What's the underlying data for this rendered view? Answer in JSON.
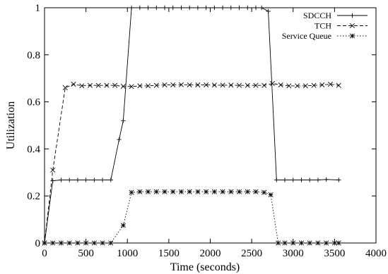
{
  "chart_data": {
    "type": "line",
    "title": "",
    "xlabel": "Time (seconds)",
    "ylabel": "Utilization",
    "xlim": [
      0,
      4000
    ],
    "ylim": [
      0,
      1
    ],
    "xticks": [
      0,
      500,
      1000,
      1500,
      2000,
      2500,
      3000,
      3500,
      4000
    ],
    "yticks": [
      0,
      0.2,
      0.4,
      0.6,
      0.8,
      1
    ],
    "grid": false,
    "legend_position": "top-right",
    "series": [
      {
        "name": "SDCCH",
        "line_style": "solid",
        "marker": "plus",
        "points": [
          [
            0,
            0
          ],
          [
            100,
            0.265
          ],
          [
            200,
            0.268
          ],
          [
            300,
            0.268
          ],
          [
            400,
            0.268
          ],
          [
            500,
            0.268
          ],
          [
            600,
            0.268
          ],
          [
            700,
            0.268
          ],
          [
            800,
            0.268
          ],
          [
            900,
            0.44
          ],
          [
            950,
            0.52
          ],
          [
            1050,
            1.0
          ],
          [
            1150,
            1.0
          ],
          [
            1250,
            1.0
          ],
          [
            1350,
            1.0
          ],
          [
            1450,
            1.0
          ],
          [
            1550,
            1.0
          ],
          [
            1650,
            1.0
          ],
          [
            1750,
            1.0
          ],
          [
            1850,
            1.0
          ],
          [
            1950,
            1.0
          ],
          [
            2050,
            1.0
          ],
          [
            2150,
            1.0
          ],
          [
            2250,
            1.0
          ],
          [
            2350,
            1.0
          ],
          [
            2450,
            1.0
          ],
          [
            2550,
            1.0
          ],
          [
            2620,
            1.0
          ],
          [
            2700,
            0.985
          ],
          [
            2800,
            0.268
          ],
          [
            2900,
            0.268
          ],
          [
            3000,
            0.268
          ],
          [
            3100,
            0.268
          ],
          [
            3200,
            0.268
          ],
          [
            3300,
            0.268
          ],
          [
            3400,
            0.27
          ],
          [
            3550,
            0.268
          ]
        ]
      },
      {
        "name": "TCH",
        "line_style": "dashed",
        "marker": "x",
        "points": [
          [
            0,
            0
          ],
          [
            100,
            0.31
          ],
          [
            250,
            0.66
          ],
          [
            350,
            0.675
          ],
          [
            450,
            0.668
          ],
          [
            550,
            0.67
          ],
          [
            650,
            0.67
          ],
          [
            750,
            0.67
          ],
          [
            850,
            0.67
          ],
          [
            950,
            0.666
          ],
          [
            1050,
            0.665
          ],
          [
            1150,
            0.668
          ],
          [
            1250,
            0.668
          ],
          [
            1350,
            0.67
          ],
          [
            1450,
            0.672
          ],
          [
            1550,
            0.672
          ],
          [
            1650,
            0.673
          ],
          [
            1750,
            0.672
          ],
          [
            1850,
            0.672
          ],
          [
            1950,
            0.672
          ],
          [
            2050,
            0.671
          ],
          [
            2150,
            0.671
          ],
          [
            2250,
            0.671
          ],
          [
            2350,
            0.67
          ],
          [
            2450,
            0.67
          ],
          [
            2550,
            0.67
          ],
          [
            2650,
            0.67
          ],
          [
            2750,
            0.678
          ],
          [
            2850,
            0.672
          ],
          [
            2950,
            0.668
          ],
          [
            3050,
            0.668
          ],
          [
            3150,
            0.668
          ],
          [
            3250,
            0.67
          ],
          [
            3350,
            0.672
          ],
          [
            3450,
            0.675
          ],
          [
            3550,
            0.67
          ]
        ]
      },
      {
        "name": "Service Queue",
        "line_style": "dotted",
        "marker": "asterisk",
        "points": [
          [
            0,
            0
          ],
          [
            100,
            0
          ],
          [
            200,
            0
          ],
          [
            300,
            0
          ],
          [
            400,
            0
          ],
          [
            500,
            0
          ],
          [
            600,
            0
          ],
          [
            700,
            0
          ],
          [
            800,
            0
          ],
          [
            950,
            0.075
          ],
          [
            1050,
            0.215
          ],
          [
            1150,
            0.218
          ],
          [
            1250,
            0.218
          ],
          [
            1350,
            0.218
          ],
          [
            1450,
            0.218
          ],
          [
            1550,
            0.218
          ],
          [
            1650,
            0.218
          ],
          [
            1750,
            0.218
          ],
          [
            1850,
            0.218
          ],
          [
            1950,
            0.218
          ],
          [
            2050,
            0.218
          ],
          [
            2150,
            0.218
          ],
          [
            2250,
            0.218
          ],
          [
            2350,
            0.218
          ],
          [
            2450,
            0.218
          ],
          [
            2550,
            0.218
          ],
          [
            2650,
            0.215
          ],
          [
            2730,
            0.205
          ],
          [
            2820,
            0
          ],
          [
            2900,
            0
          ],
          [
            3000,
            0
          ],
          [
            3100,
            0
          ],
          [
            3200,
            0
          ],
          [
            3300,
            0
          ],
          [
            3400,
            0
          ],
          [
            3500,
            0
          ],
          [
            3550,
            0
          ]
        ]
      }
    ]
  }
}
